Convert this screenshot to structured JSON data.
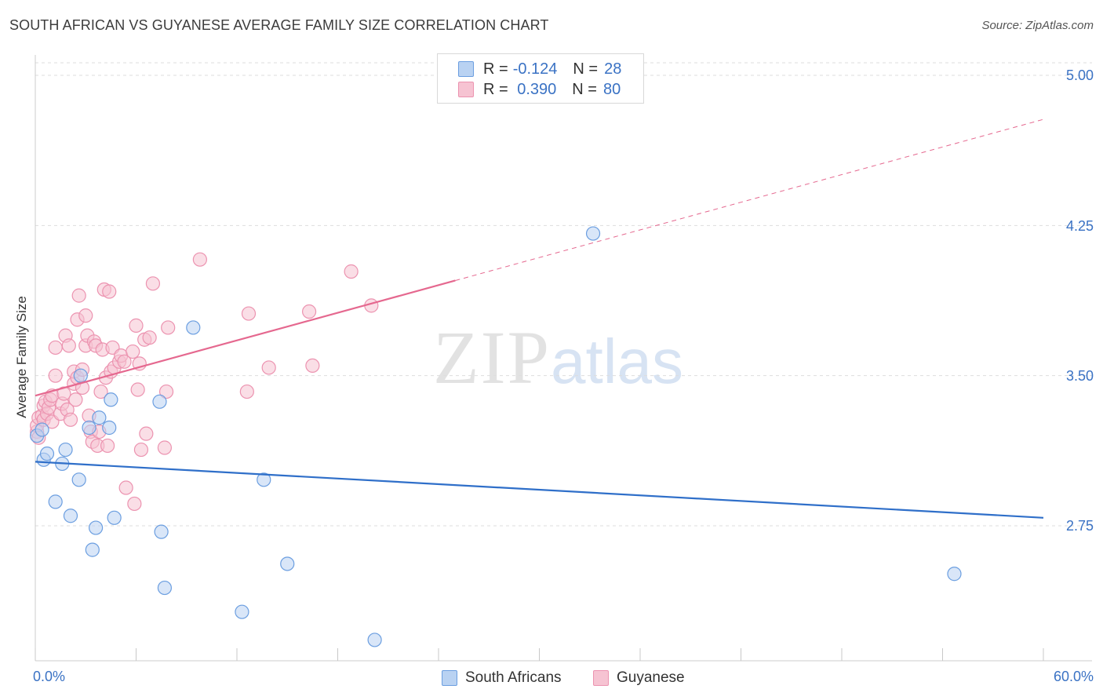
{
  "title": "SOUTH AFRICAN VS GUYANESE AVERAGE FAMILY SIZE CORRELATION CHART",
  "source": "Source: ZipAtlas.com",
  "watermark": {
    "zip": "ZIP",
    "atlas": "atlas"
  },
  "legend_top": [
    {
      "r_label": "R = ",
      "r_value": "-0.124",
      "n_label": "N = ",
      "n_value": "28"
    },
    {
      "r_label": "R = ",
      "r_value": " 0.390",
      "n_label": "N = ",
      "n_value": "80"
    }
  ],
  "colors": {
    "south_africans_fill": "#b9d2f2",
    "south_africans_stroke": "#6b9ee0",
    "south_africans_line": "#2f6fc9",
    "guyanese_fill": "#f6c3d2",
    "guyanese_stroke": "#ec93b0",
    "guyanese_line": "#e5688f",
    "axis_text": "#3a72c4",
    "grid": "#dddddd"
  },
  "chart_data": {
    "type": "scatter",
    "title": "SOUTH AFRICAN VS GUYANESE AVERAGE FAMILY SIZE CORRELATION CHART",
    "xlabel": "",
    "ylabel": "Average Family Size",
    "xlim": [
      0,
      60
    ],
    "ylim": [
      2.05,
      5.1
    ],
    "x_tick_labels": [
      "0.0%",
      "60.0%"
    ],
    "y_ticks": [
      2.75,
      3.5,
      4.25,
      5.0
    ],
    "y_tick_labels": [
      "2.75",
      "3.50",
      "4.25",
      "5.00"
    ],
    "legend_entries": [
      "South Africans",
      "Guyanese"
    ],
    "series": [
      {
        "name": "South Africans",
        "r": -0.124,
        "n": 28,
        "trend": {
          "x0": 0,
          "y0": 3.07,
          "x1": 60,
          "y1": 2.79,
          "dashed_from": null
        },
        "points": [
          [
            0.1,
            3.2
          ],
          [
            0.4,
            3.23
          ],
          [
            0.5,
            3.08
          ],
          [
            0.7,
            3.11
          ],
          [
            1.2,
            2.87
          ],
          [
            1.6,
            3.06
          ],
          [
            1.8,
            3.13
          ],
          [
            2.1,
            2.8
          ],
          [
            2.6,
            2.98
          ],
          [
            2.7,
            3.5
          ],
          [
            3.2,
            3.24
          ],
          [
            3.4,
            2.63
          ],
          [
            3.6,
            2.74
          ],
          [
            3.8,
            3.29
          ],
          [
            4.4,
            3.24
          ],
          [
            4.5,
            3.38
          ],
          [
            4.7,
            2.79
          ],
          [
            7.4,
            3.37
          ],
          [
            7.5,
            2.72
          ],
          [
            7.7,
            2.44
          ],
          [
            9.4,
            3.74
          ],
          [
            12.3,
            2.32
          ],
          [
            13.6,
            2.98
          ],
          [
            15.0,
            2.56
          ],
          [
            20.2,
            2.18
          ],
          [
            33.2,
            4.21
          ],
          [
            54.7,
            2.51
          ]
        ]
      },
      {
        "name": "Guyanese",
        "r": 0.39,
        "n": 80,
        "trend": {
          "x0": 0,
          "y0": 3.4,
          "x1": 60,
          "y1": 4.78,
          "solid_until": 25.0
        },
        "points": [
          [
            0.1,
            3.22
          ],
          [
            0.1,
            3.25
          ],
          [
            0.2,
            3.19
          ],
          [
            0.2,
            3.29
          ],
          [
            0.4,
            3.3
          ],
          [
            0.5,
            3.28
          ],
          [
            0.5,
            3.35
          ],
          [
            0.6,
            3.37
          ],
          [
            0.7,
            3.31
          ],
          [
            0.8,
            3.34
          ],
          [
            0.9,
            3.38
          ],
          [
            1.0,
            3.27
          ],
          [
            1.0,
            3.4
          ],
          [
            1.2,
            3.5
          ],
          [
            1.2,
            3.64
          ],
          [
            1.5,
            3.31
          ],
          [
            1.6,
            3.36
          ],
          [
            1.7,
            3.41
          ],
          [
            1.8,
            3.7
          ],
          [
            1.9,
            3.33
          ],
          [
            2.0,
            3.65
          ],
          [
            2.1,
            3.28
          ],
          [
            2.3,
            3.46
          ],
          [
            2.3,
            3.52
          ],
          [
            2.4,
            3.38
          ],
          [
            2.5,
            3.49
          ],
          [
            2.5,
            3.78
          ],
          [
            2.6,
            3.9
          ],
          [
            2.8,
            3.44
          ],
          [
            2.8,
            3.53
          ],
          [
            3.0,
            3.65
          ],
          [
            3.0,
            3.8
          ],
          [
            3.1,
            3.7
          ],
          [
            3.2,
            3.3
          ],
          [
            3.3,
            3.22
          ],
          [
            3.4,
            3.17
          ],
          [
            3.5,
            3.67
          ],
          [
            3.6,
            3.65
          ],
          [
            3.7,
            3.15
          ],
          [
            3.8,
            3.22
          ],
          [
            3.9,
            3.42
          ],
          [
            4.0,
            3.63
          ],
          [
            4.1,
            3.93
          ],
          [
            4.2,
            3.49
          ],
          [
            4.3,
            3.15
          ],
          [
            4.4,
            3.92
          ],
          [
            4.5,
            3.52
          ],
          [
            4.6,
            3.64
          ],
          [
            4.7,
            3.54
          ],
          [
            5.0,
            3.57
          ],
          [
            5.1,
            3.6
          ],
          [
            5.3,
            3.57
          ],
          [
            5.4,
            2.94
          ],
          [
            5.8,
            3.62
          ],
          [
            5.9,
            2.86
          ],
          [
            6.0,
            3.75
          ],
          [
            6.1,
            3.43
          ],
          [
            6.2,
            3.56
          ],
          [
            6.3,
            3.13
          ],
          [
            6.5,
            3.68
          ],
          [
            6.6,
            3.21
          ],
          [
            6.8,
            3.69
          ],
          [
            7.0,
            3.96
          ],
          [
            7.7,
            3.14
          ],
          [
            7.8,
            3.42
          ],
          [
            7.9,
            3.74
          ],
          [
            9.8,
            4.08
          ],
          [
            12.6,
            3.42
          ],
          [
            12.7,
            3.81
          ],
          [
            13.9,
            3.54
          ],
          [
            16.3,
            3.82
          ],
          [
            16.5,
            3.55
          ],
          [
            18.8,
            4.02
          ],
          [
            20.0,
            3.85
          ]
        ]
      }
    ]
  }
}
